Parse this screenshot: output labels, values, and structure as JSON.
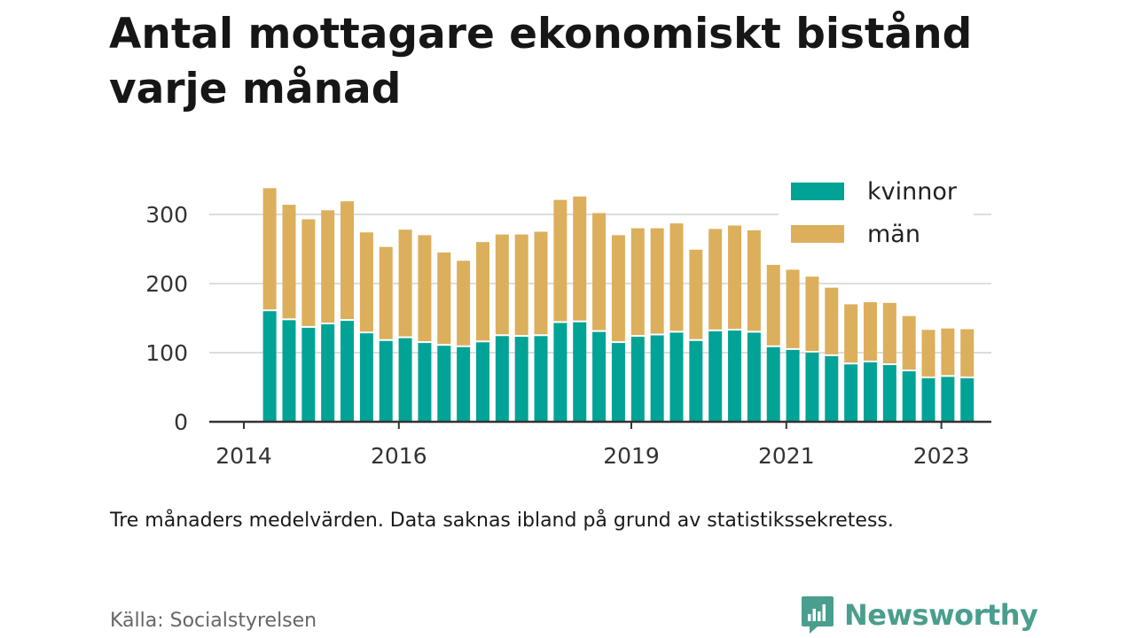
{
  "title": "Antal mottagare ekonomiskt bistånd varje månad",
  "note": "Tre månaders medelvärden. Data saknas ibland på grund av statistikssekretess.",
  "source": "Källa: Socialstyrelsen",
  "brand": {
    "name": "Newsworthy",
    "logo_icon": "newsworthy-logo-icon",
    "color": "#4a9e8e"
  },
  "colors": {
    "kvinnor": "#00a396",
    "man": "#dcaf5c",
    "axis": "#333333",
    "grid": "#dddddd",
    "text": "#333333"
  },
  "chart_data": {
    "type": "bar",
    "stacked": true,
    "title": "Antal mottagare ekonomiskt bistånd varje månad",
    "xlabel": "",
    "ylabel": "",
    "ylim": [
      0,
      350
    ],
    "yticks": [
      0,
      100,
      200,
      300
    ],
    "xtick_labels": [
      {
        "label": "2014",
        "x": 2014.0
      },
      {
        "label": "2016",
        "x": 2016.0
      },
      {
        "label": "2019",
        "x": 2019.0
      },
      {
        "label": "2021",
        "x": 2021.0
      },
      {
        "label": "2023",
        "x": 2023.0
      }
    ],
    "xlim": [
      2014.0,
      2024.0
    ],
    "grid": true,
    "legend_position": "top-right",
    "bar_spacing_years": 0.25,
    "x": [
      "2014-05",
      "2014-08",
      "2014-11",
      "2015-02",
      "2015-05",
      "2015-08",
      "2015-11",
      "2016-02",
      "2016-05",
      "2016-08",
      "2016-11",
      "2017-02",
      "2017-05",
      "2017-08",
      "2017-11",
      "2018-02",
      "2018-05",
      "2018-08",
      "2018-11",
      "2019-02",
      "2019-05",
      "2019-08",
      "2019-11",
      "2020-02",
      "2020-05",
      "2020-08",
      "2020-11",
      "2021-02",
      "2021-05",
      "2021-08",
      "2021-11",
      "2022-02",
      "2022-05",
      "2022-08",
      "2022-11",
      "2023-02",
      "2023-05"
    ],
    "series": [
      {
        "name": "kvinnor",
        "values": [
          160,
          147,
          136,
          141,
          146,
          128,
          117,
          121,
          114,
          110,
          108,
          115,
          124,
          123,
          124,
          143,
          144,
          130,
          114,
          123,
          125,
          129,
          117,
          131,
          132,
          129,
          108,
          104,
          100,
          95,
          83,
          86,
          82,
          73,
          63,
          65,
          63
        ]
      },
      {
        "name": "män",
        "values": [
          178,
          167,
          157,
          165,
          173,
          146,
          136,
          157,
          156,
          135,
          125,
          145,
          147,
          148,
          151,
          178,
          182,
          172,
          156,
          157,
          155,
          158,
          132,
          148,
          152,
          148,
          119,
          116,
          110,
          99,
          87,
          87,
          90,
          80,
          70,
          70,
          71
        ]
      }
    ]
  }
}
